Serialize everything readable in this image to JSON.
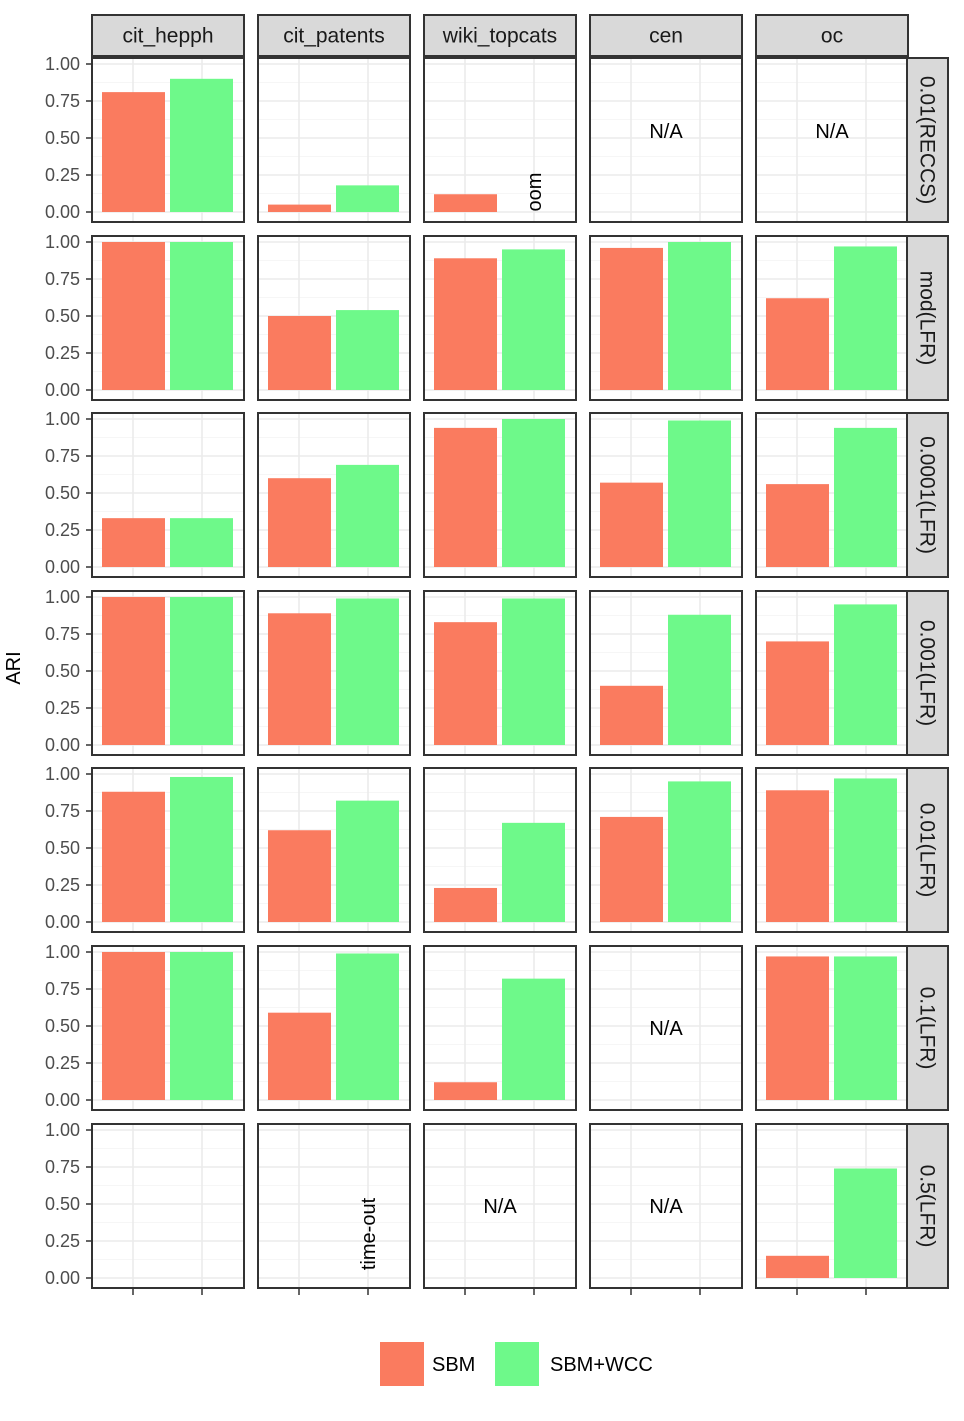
{
  "chart_data": {
    "type": "bar",
    "facet_columns": [
      "cit_hepph",
      "cit_patents",
      "wiki_topcats",
      "cen",
      "oc"
    ],
    "facet_rows": [
      "0.01(RECCS)",
      "mod(LFR)",
      "0.0001(LFR)",
      "0.001(LFR)",
      "0.01(LFR)",
      "0.1(LFR)",
      "0.5(LFR)"
    ],
    "ylabel": "ARI",
    "ylim": [
      0,
      1
    ],
    "yticks": [
      "0.00",
      "0.25",
      "0.50",
      "0.75",
      "1.00"
    ],
    "ytick_values": [
      0,
      0.25,
      0.5,
      0.75,
      1.0
    ],
    "grid": true,
    "legend_position": "bottom",
    "series": [
      {
        "name": "SBM",
        "color": "#FA7B5F"
      },
      {
        "name": "SBM+WCC",
        "color": "#6EF98A"
      }
    ],
    "cells": [
      [
        {
          "values": [
            0.81,
            0.9
          ]
        },
        {
          "values": [
            0.05,
            0.18
          ]
        },
        {
          "values": [
            0.12,
            null
          ],
          "note": "oom",
          "note_pos": "bar2",
          "note_rotated": true
        },
        {
          "values": [
            null,
            null
          ],
          "note": "N/A",
          "note_pos": "upper"
        },
        {
          "values": [
            null,
            null
          ],
          "note": "N/A",
          "note_pos": "upper"
        }
      ],
      [
        {
          "values": [
            1.0,
            1.0
          ]
        },
        {
          "values": [
            0.5,
            0.54
          ]
        },
        {
          "values": [
            0.89,
            0.95
          ]
        },
        {
          "values": [
            0.96,
            1.0
          ]
        },
        {
          "values": [
            0.62,
            0.97
          ]
        }
      ],
      [
        {
          "values": [
            0.33,
            0.33
          ]
        },
        {
          "values": [
            0.6,
            0.69
          ]
        },
        {
          "values": [
            0.94,
            1.0
          ]
        },
        {
          "values": [
            0.57,
            0.99
          ]
        },
        {
          "values": [
            0.56,
            0.94
          ]
        }
      ],
      [
        {
          "values": [
            1.0,
            1.0
          ]
        },
        {
          "values": [
            0.89,
            0.99
          ]
        },
        {
          "values": [
            0.83,
            0.99
          ]
        },
        {
          "values": [
            0.4,
            0.88
          ]
        },
        {
          "values": [
            0.7,
            0.95
          ]
        }
      ],
      [
        {
          "values": [
            0.88,
            0.98
          ]
        },
        {
          "values": [
            0.62,
            0.82
          ]
        },
        {
          "values": [
            0.23,
            0.67
          ]
        },
        {
          "values": [
            0.71,
            0.95
          ]
        },
        {
          "values": [
            0.89,
            0.97
          ]
        }
      ],
      [
        {
          "values": [
            1.0,
            1.0
          ]
        },
        {
          "values": [
            0.59,
            0.99
          ]
        },
        {
          "values": [
            0.12,
            0.82
          ]
        },
        {
          "values": [
            null,
            null
          ],
          "note": "N/A",
          "note_pos": "center"
        },
        {
          "values": [
            0.97,
            0.97
          ]
        }
      ],
      [
        {
          "values": [
            null,
            null
          ]
        },
        {
          "values": [
            null,
            null
          ],
          "note": "time-out",
          "note_pos": "bar2",
          "note_rotated": true
        },
        {
          "values": [
            null,
            null
          ],
          "note": "N/A",
          "note_pos": "center"
        },
        {
          "values": [
            null,
            null
          ],
          "note": "N/A",
          "note_pos": "center"
        },
        {
          "values": [
            0.15,
            0.74
          ]
        }
      ]
    ]
  }
}
